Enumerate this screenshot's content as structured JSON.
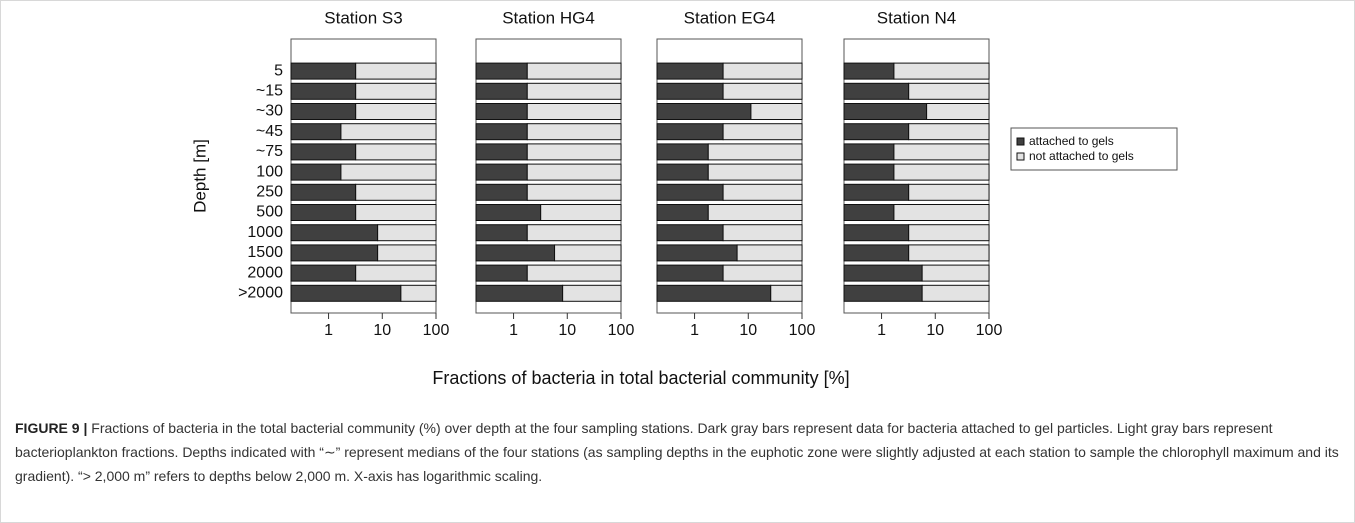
{
  "chart_data": {
    "type": "bar",
    "orientation": "horizontal",
    "stacked": true,
    "log_x": true,
    "ylabel": "Depth [m]",
    "xlabel": "Fractions of bacteria in total bacterial community [%]",
    "categories": [
      "5",
      "~15",
      "~30",
      "~45",
      "~75",
      "100",
      "250",
      "500",
      "1000",
      "1500",
      "2000",
      ">2000"
    ],
    "xlim": [
      0.2,
      100
    ],
    "xticks": [
      1,
      10,
      100
    ],
    "legend": "right",
    "series": [
      {
        "name": "attached to gels",
        "color": "#404040"
      },
      {
        "name": "not attached to gels",
        "color": "#e3e3e3"
      }
    ],
    "panels": [
      {
        "title": "Station  S3",
        "values": [
          [
            3,
            3,
            3,
            1.5,
            3,
            1.5,
            3,
            3,
            8,
            8,
            3,
            22
          ],
          [
            97,
            97,
            97,
            98.5,
            97,
            98.5,
            97,
            97,
            92,
            92,
            97,
            78
          ]
        ]
      },
      {
        "title": "Station  HG4",
        "values": [
          [
            1.6,
            1.6,
            1.6,
            1.6,
            1.6,
            1.6,
            1.6,
            3,
            1.6,
            5.6,
            1.6,
            8
          ],
          [
            98.4,
            98.4,
            98.4,
            98.4,
            98.4,
            98.4,
            98.4,
            97,
            98.4,
            94.4,
            98.4,
            92
          ]
        ]
      },
      {
        "title": "Station  EG4",
        "values": [
          [
            3.2,
            3.2,
            11,
            3.2,
            1.6,
            1.6,
            3.2,
            1.6,
            3.2,
            6,
            3.2,
            26
          ],
          [
            96.8,
            96.8,
            89,
            96.8,
            98.4,
            98.4,
            96.8,
            98.4,
            96.8,
            94,
            96.8,
            74
          ]
        ]
      },
      {
        "title": "Station  N4",
        "values": [
          [
            1.5,
            3,
            6.7,
            3,
            1.5,
            1.5,
            3,
            1.5,
            3,
            3,
            5.5,
            5.5
          ],
          [
            98.5,
            97,
            93.3,
            97,
            98.5,
            98.5,
            97,
            98.5,
            97,
            97,
            94.5,
            94.5
          ]
        ]
      }
    ]
  },
  "caption": {
    "label": "FIGURE 9 |",
    "text": "Fractions of bacteria in the total bacterial community (%) over depth at the four sampling stations. Dark gray bars represent data for bacteria attached to gel particles. Light gray bars represent bacterioplankton fractions. Depths indicated with “∼” represent medians of the four stations (as sampling depths in the euphotic zone were slightly adjusted at each station to sample the chlorophyll maximum and its gradient). “> 2,000 m” refers to depths below 2,000 m. X-axis has logarithmic scaling."
  }
}
